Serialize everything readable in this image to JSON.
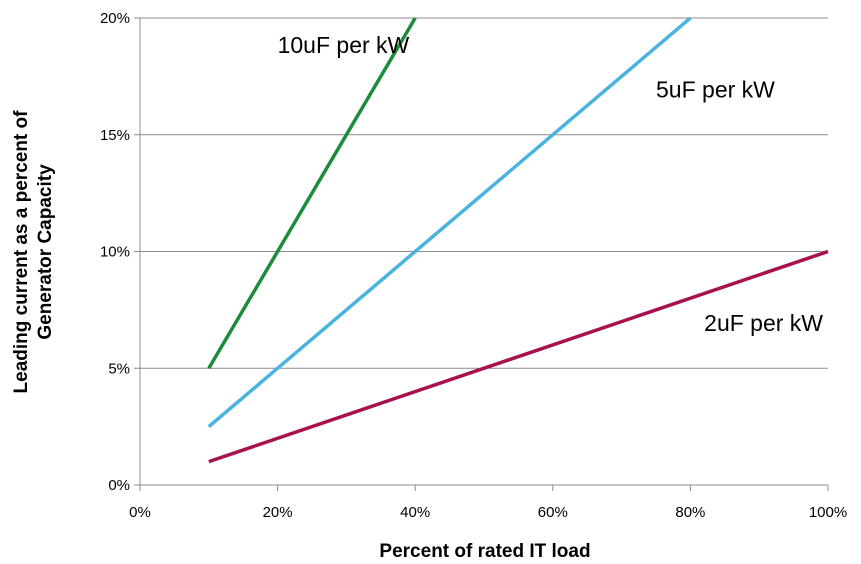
{
  "chart_data": {
    "type": "line",
    "title": "",
    "xlabel": "Percent of rated IT load",
    "ylabel_lines": [
      "Leading current as a percent of",
      "Generator Capacity"
    ],
    "xlim": [
      0,
      100
    ],
    "ylim": [
      0,
      20
    ],
    "x_ticks": [
      0,
      20,
      40,
      60,
      80,
      100
    ],
    "y_ticks": [
      0,
      5,
      10,
      15,
      20
    ],
    "x_tick_labels": [
      "0%",
      "20%",
      "40%",
      "60%",
      "80%",
      "100%"
    ],
    "y_tick_labels": [
      "0%",
      "5%",
      "10%",
      "15%",
      "20%"
    ],
    "grid": {
      "horizontal": true,
      "vertical": false
    },
    "legend": "none",
    "series": [
      {
        "name": "10uF per kW",
        "color": "#1a8c3a",
        "x": [
          10,
          40
        ],
        "y": [
          5,
          20
        ],
        "label_at": {
          "x": 20,
          "y": 18.5
        }
      },
      {
        "name": "5uF per kW",
        "color": "#4ab3e0",
        "x": [
          10,
          80
        ],
        "y": [
          2.5,
          20
        ],
        "label_at": {
          "x": 75,
          "y": 16.6
        }
      },
      {
        "name": "2uF per kW",
        "color": "#a8104f",
        "x": [
          10,
          100
        ],
        "y": [
          1,
          10
        ],
        "label_at": {
          "x": 82,
          "y": 6.6
        }
      }
    ]
  }
}
